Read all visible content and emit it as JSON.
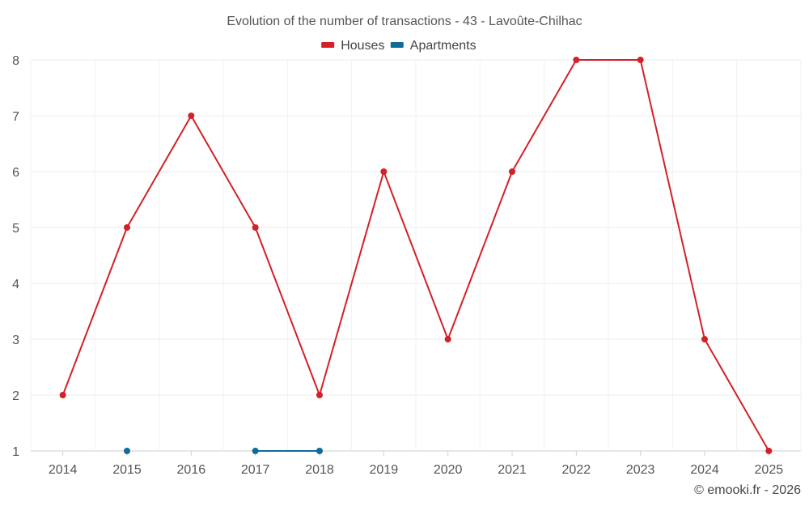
{
  "chart_data": {
    "type": "line",
    "title": "Evolution of the number of transactions - 43 - Lavoûte-Chilhac",
    "x": [
      "2014",
      "2015",
      "2016",
      "2017",
      "2018",
      "2019",
      "2020",
      "2021",
      "2022",
      "2023",
      "2024",
      "2025"
    ],
    "ylim": [
      1,
      8
    ],
    "yticks": [
      1,
      2,
      3,
      4,
      5,
      6,
      7,
      8
    ],
    "grid": true,
    "legend_position": "top-center",
    "series": [
      {
        "name": "Houses",
        "color": "#d32127",
        "values": [
          2,
          5,
          7,
          5,
          2,
          6,
          3,
          6,
          8,
          8,
          3,
          1
        ]
      },
      {
        "name": "Apartments",
        "color": "#0f6b9a",
        "values": [
          null,
          1,
          null,
          1,
          1,
          null,
          null,
          null,
          null,
          null,
          null,
          null
        ]
      }
    ]
  },
  "credit": "© emooki.fr - 2026"
}
